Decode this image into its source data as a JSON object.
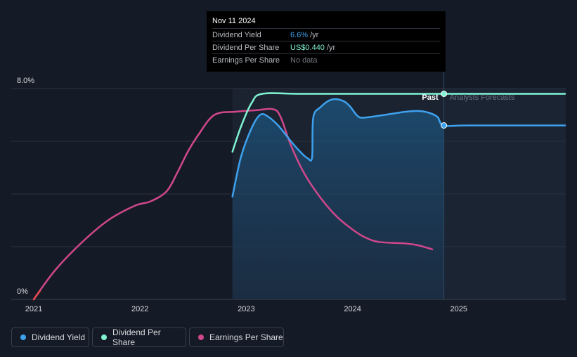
{
  "tooltip": {
    "date": "Nov 11 2024",
    "rows": [
      {
        "label": "Dividend Yield",
        "value": "6.6%",
        "unit": "/yr"
      },
      {
        "label": "Dividend Per Share",
        "value": "US$0.440",
        "unit": "/yr"
      },
      {
        "label": "Earnings Per Share",
        "value": "No data",
        "unit": ""
      }
    ]
  },
  "region_labels": {
    "past": "Past",
    "forecast": "Analysts Forecasts"
  },
  "legend": [
    {
      "label": "Dividend Yield",
      "color": "#3ea1ee"
    },
    {
      "label": "Dividend Per Share",
      "color": "#7ff3d2"
    },
    {
      "label": "Earnings Per Share",
      "color": "#d0478b"
    }
  ],
  "chart_data": {
    "type": "line",
    "title": "",
    "x_range": [
      2021,
      2026
    ],
    "xticks": [
      2021,
      2022,
      2023,
      2024,
      2025
    ],
    "x_tick_labels": [
      "2021",
      "2022",
      "2023",
      "2024",
      "2025"
    ],
    "ylim": [
      0,
      8
    ],
    "y_tick_labels": [
      {
        "value": 8,
        "label": "8.0%"
      },
      {
        "value": 0,
        "label": "0%"
      }
    ],
    "gridlines": [
      2,
      4,
      6,
      8
    ],
    "past_boundary": 2024.86,
    "shaded_start": 2022.87,
    "series": [
      {
        "name": "Dividend Yield",
        "color": "#3ea1ee",
        "points": [
          [
            2022.87,
            3.9
          ],
          [
            2022.95,
            5.4
          ],
          [
            2023.05,
            6.5
          ],
          [
            2023.13,
            7.0
          ],
          [
            2023.2,
            6.95
          ],
          [
            2023.3,
            6.6
          ],
          [
            2023.42,
            6.0
          ],
          [
            2023.52,
            5.55
          ],
          [
            2023.58,
            5.35
          ],
          [
            2023.62,
            5.4
          ],
          [
            2023.63,
            6.9
          ],
          [
            2023.7,
            7.3
          ],
          [
            2023.8,
            7.58
          ],
          [
            2023.9,
            7.55
          ],
          [
            2023.97,
            7.35
          ],
          [
            2024.05,
            6.95
          ],
          [
            2024.12,
            6.9
          ],
          [
            2024.3,
            7.0
          ],
          [
            2024.5,
            7.12
          ],
          [
            2024.62,
            7.15
          ],
          [
            2024.72,
            7.08
          ],
          [
            2024.8,
            6.92
          ],
          [
            2024.86,
            6.6
          ],
          [
            2025.1,
            6.6
          ],
          [
            2026.0,
            6.6
          ]
        ]
      },
      {
        "name": "Dividend Per Share",
        "color": "#7ff3d2",
        "points": [
          [
            2022.87,
            5.6
          ],
          [
            2022.95,
            6.55
          ],
          [
            2023.05,
            7.45
          ],
          [
            2023.15,
            7.8
          ],
          [
            2023.5,
            7.8
          ],
          [
            2024.0,
            7.8
          ],
          [
            2024.86,
            7.8
          ],
          [
            2025.5,
            7.8
          ],
          [
            2026.0,
            7.8
          ]
        ]
      },
      {
        "name": "Earnings Per Share",
        "color": "#d0478b",
        "points": [
          [
            2021.0,
            0.0
          ],
          [
            2021.2,
            1.1
          ],
          [
            2021.45,
            2.15
          ],
          [
            2021.7,
            3.0
          ],
          [
            2021.95,
            3.55
          ],
          [
            2022.1,
            3.72
          ],
          [
            2022.25,
            4.1
          ],
          [
            2022.35,
            4.8
          ],
          [
            2022.45,
            5.6
          ],
          [
            2022.55,
            6.25
          ],
          [
            2022.7,
            7.0
          ],
          [
            2022.9,
            7.12
          ],
          [
            2023.1,
            7.18
          ],
          [
            2023.25,
            7.22
          ],
          [
            2023.32,
            6.95
          ],
          [
            2023.42,
            5.85
          ],
          [
            2023.55,
            4.75
          ],
          [
            2023.7,
            3.85
          ],
          [
            2023.85,
            3.15
          ],
          [
            2024.0,
            2.65
          ],
          [
            2024.12,
            2.35
          ],
          [
            2024.25,
            2.18
          ],
          [
            2024.5,
            2.12
          ],
          [
            2024.62,
            2.05
          ],
          [
            2024.75,
            1.9
          ]
        ]
      }
    ]
  }
}
